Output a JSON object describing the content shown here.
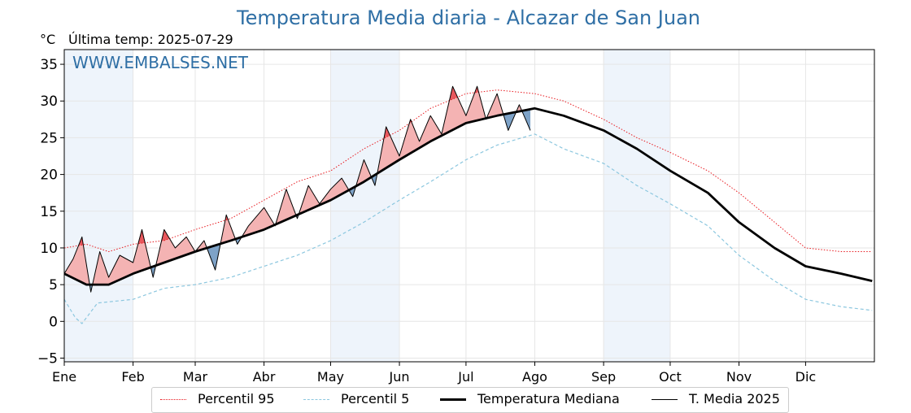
{
  "header": {
    "title": "Temperatura Media diaria - Alcazar de San Juan",
    "unit": "°C",
    "last_temp_text": "Última temp: 2025-07-29",
    "watermark": "WWW.EMBALSES.NET"
  },
  "colors": {
    "title": "#2f6fa5",
    "p95": "#e8191f",
    "p5": "#8cc7df",
    "median": "#000000",
    "current": "#000000",
    "above_fill": "#f4b3b3",
    "above_fill_strong": "#e8585d",
    "below_fill": "#7ea3c8",
    "month_band": "#eef4fb"
  },
  "chart_data": {
    "type": "line",
    "title": "Temperatura Media diaria - Alcazar de San Juan",
    "ylabel": "°C",
    "xlabel": "",
    "ylim": [
      -5.5,
      37
    ],
    "yticks": [
      -5,
      0,
      5,
      10,
      15,
      20,
      25,
      30,
      35
    ],
    "ytick_labels": [
      "−5",
      "0",
      "5",
      "10",
      "15",
      "20",
      "25",
      "30",
      "35"
    ],
    "x_domain_days": [
      0,
      365
    ],
    "month_labels": [
      "Ene",
      "Feb",
      "Mar",
      "Abr",
      "May",
      "Jun",
      "Jul",
      "Ago",
      "Sep",
      "Oct",
      "Nov",
      "Dic"
    ],
    "month_start_days": [
      0,
      31,
      59,
      90,
      120,
      151,
      181,
      212,
      243,
      273,
      304,
      334
    ],
    "grid": true,
    "legend_position": "bottom",
    "series": [
      {
        "name": "Percentil 95",
        "style": "dotted",
        "color": "#e8191f",
        "x": [
          0,
          10,
          20,
          31,
          45,
          59,
          75,
          90,
          105,
          120,
          135,
          151,
          165,
          181,
          195,
          212,
          225,
          243,
          258,
          273,
          290,
          304,
          320,
          334,
          350,
          364
        ],
        "y": [
          10.0,
          10.5,
          9.5,
          10.5,
          11.0,
          12.5,
          14.0,
          16.5,
          19.0,
          20.5,
          23.5,
          26.0,
          29.0,
          31.0,
          31.5,
          31.0,
          30.0,
          27.5,
          25.0,
          23.0,
          20.5,
          17.5,
          13.5,
          10.0,
          9.5,
          9.5
        ]
      },
      {
        "name": "Percentil 5",
        "style": "dashed",
        "color": "#8cc7df",
        "x": [
          0,
          5,
          8,
          15,
          31,
          45,
          59,
          75,
          90,
          105,
          120,
          135,
          151,
          165,
          181,
          195,
          212,
          225,
          243,
          258,
          273,
          290,
          304,
          320,
          334,
          350,
          364
        ],
        "y": [
          3.0,
          0.5,
          -0.3,
          2.5,
          3.0,
          4.5,
          5.0,
          6.0,
          7.5,
          9.0,
          11.0,
          13.5,
          16.5,
          19.0,
          22.0,
          24.0,
          25.5,
          23.5,
          21.5,
          18.5,
          16.0,
          13.0,
          9.0,
          5.5,
          3.0,
          2.0,
          1.5
        ]
      },
      {
        "name": "Temperatura Mediana",
        "style": "solid-bold",
        "color": "#000000",
        "x": [
          0,
          10,
          20,
          31,
          45,
          59,
          75,
          90,
          105,
          120,
          135,
          151,
          165,
          181,
          195,
          212,
          225,
          243,
          258,
          273,
          290,
          304,
          320,
          334,
          350,
          364
        ],
        "y": [
          6.5,
          5.0,
          5.0,
          6.5,
          8.0,
          9.5,
          11.0,
          12.5,
          14.5,
          16.5,
          19.0,
          22.0,
          24.5,
          27.0,
          28.0,
          29.0,
          28.0,
          26.0,
          23.5,
          20.5,
          17.5,
          13.5,
          10.0,
          7.5,
          6.5,
          5.5
        ]
      },
      {
        "name": "T. Media 2025",
        "style": "solid-thin",
        "color": "#000000",
        "x": [
          0,
          4,
          8,
          12,
          16,
          20,
          25,
          31,
          35,
          40,
          45,
          50,
          55,
          59,
          63,
          68,
          73,
          78,
          83,
          90,
          95,
          100,
          105,
          110,
          115,
          120,
          125,
          130,
          135,
          140,
          145,
          151,
          156,
          160,
          165,
          170,
          175,
          181,
          186,
          190,
          195,
          200,
          205,
          210
        ],
        "y": [
          6.5,
          8.5,
          11.5,
          4.0,
          9.5,
          6.0,
          9.0,
          8.0,
          12.5,
          6.0,
          12.5,
          10.0,
          11.5,
          9.5,
          11.0,
          7.0,
          14.5,
          10.5,
          13.0,
          15.5,
          13.0,
          18.0,
          14.0,
          18.5,
          16.0,
          18.0,
          19.5,
          17.0,
          22.0,
          18.5,
          26.5,
          22.5,
          27.5,
          24.5,
          28.0,
          25.5,
          32.0,
          28.0,
          32.0,
          27.5,
          31.0,
          26.0,
          29.5,
          26.0
        ]
      }
    ]
  },
  "legend": {
    "items": [
      {
        "label": "Percentil 95"
      },
      {
        "label": "Percentil 5"
      },
      {
        "label": "Temperatura Mediana"
      },
      {
        "label": "T. Media 2025"
      }
    ]
  }
}
